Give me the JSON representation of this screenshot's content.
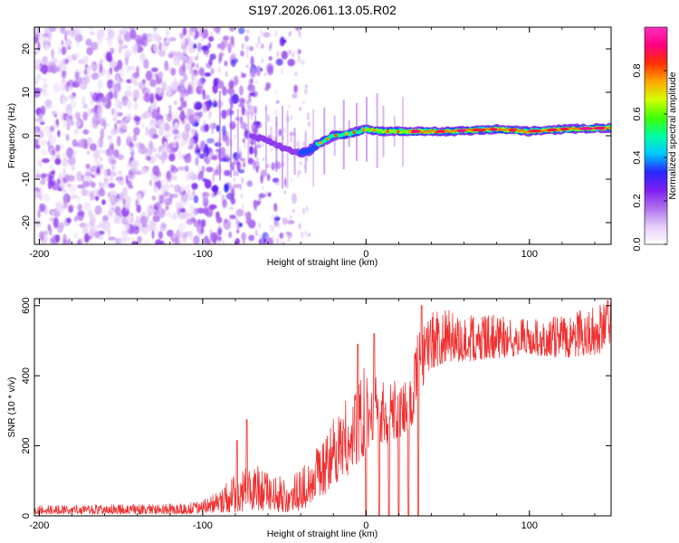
{
  "chart_data": [
    {
      "type": "heatmap",
      "title": "S197.2026.061.13.05.R02",
      "xlabel": "Height of straight line (km)",
      "ylabel": "Frequency (Hz)",
      "xlim": [
        -203,
        150
      ],
      "ylim": [
        -25,
        25
      ],
      "xticks": [
        -200,
        -100,
        0,
        100
      ],
      "xtick_labels": [
        "-200",
        "-100",
        "0",
        "100"
      ],
      "yticks": [
        -20,
        -10,
        0,
        10,
        20
      ],
      "ytick_labels": [
        "-20",
        "-10",
        "0",
        "10",
        "20"
      ],
      "colorbar": {
        "label": "Normalized spectral amplitude",
        "range": [
          0,
          1
        ],
        "ticks": [
          0.0,
          0.2,
          0.4,
          0.6,
          0.8
        ],
        "tick_labels": [
          "0.0",
          "0.2",
          "0.4",
          "0.6",
          "0.8"
        ],
        "colormap": [
          "#ffffff",
          "#e3ccf7",
          "#b070ee",
          "#7d1ef0",
          "#2828ff",
          "#00c8ff",
          "#00ffa0",
          "#40ff00",
          "#d2ff00",
          "#ffa500",
          "#ff3000",
          "#ff0080",
          "#ff30c0"
        ]
      },
      "regions": [
        {
          "x_range": [
            -203,
            -105
          ],
          "description": "scattered noise",
          "amplitude": [
            0.0,
            0.2
          ]
        },
        {
          "x_range": [
            -105,
            -40
          ],
          "description": "emerging signal near 0 Hz",
          "amplitude": [
            0.1,
            0.3
          ]
        },
        {
          "x_range": [
            -40,
            28
          ],
          "description": "signal line dipping to -4 Hz then rising to ~1 Hz",
          "amplitude": [
            0.3,
            0.7
          ]
        },
        {
          "x_range": [
            28,
            150
          ],
          "description": "strong line at ~1-2 Hz",
          "amplitude": [
            0.6,
            0.95
          ]
        }
      ],
      "ridge": {
        "x": [
          -70,
          -60,
          -50,
          -40,
          -35,
          -30,
          -25,
          -20,
          -10,
          0,
          10,
          28,
          50,
          80,
          100,
          120,
          150
        ],
        "y": [
          0,
          -1,
          -3,
          -4,
          -3.5,
          -2,
          -1,
          0,
          0.5,
          1.5,
          1,
          1,
          1,
          1.5,
          1,
          1.5,
          1.8
        ]
      }
    },
    {
      "type": "line",
      "title": "",
      "xlabel": "Height of straight line (km)",
      "ylabel": "SNR (10 * v/v)",
      "xlim": [
        -203,
        150
      ],
      "ylim": [
        0,
        620
      ],
      "xticks": [
        -200,
        -100,
        0,
        100
      ],
      "xtick_labels": [
        "-200",
        "-100",
        "0",
        "100"
      ],
      "yticks": [
        0,
        200,
        400,
        600
      ],
      "ytick_labels": [
        "0",
        "200",
        "400",
        "600"
      ],
      "line_color": "#f03030",
      "envelope": {
        "x": [
          -203,
          -110,
          -100,
          -90,
          -80,
          -70,
          -60,
          -50,
          -40,
          -30,
          -20,
          -10,
          -5,
          0,
          5,
          10,
          20,
          28,
          30,
          40,
          50,
          60,
          80,
          100,
          120,
          140,
          150
        ],
        "low": [
          5,
          5,
          8,
          10,
          10,
          15,
          15,
          10,
          15,
          40,
          80,
          120,
          150,
          180,
          190,
          200,
          220,
          250,
          300,
          420,
          440,
          440,
          450,
          460,
          450,
          460,
          470
        ],
        "high": [
          30,
          35,
          45,
          70,
          120,
          160,
          120,
          110,
          130,
          200,
          280,
          350,
          400,
          430,
          420,
          390,
          400,
          420,
          540,
          580,
          590,
          570,
          580,
          560,
          570,
          600,
          610
        ]
      },
      "dropouts_x": [
        0,
        8,
        14,
        20,
        26,
        32
      ],
      "spikes": [
        {
          "x": -79,
          "y": 215
        },
        {
          "x": -73,
          "y": 275
        },
        {
          "x": -5,
          "y": 490
        },
        {
          "x": 5,
          "y": 520
        },
        {
          "x": 34,
          "y": 600
        },
        {
          "x": 148,
          "y": 615
        }
      ]
    }
  ]
}
